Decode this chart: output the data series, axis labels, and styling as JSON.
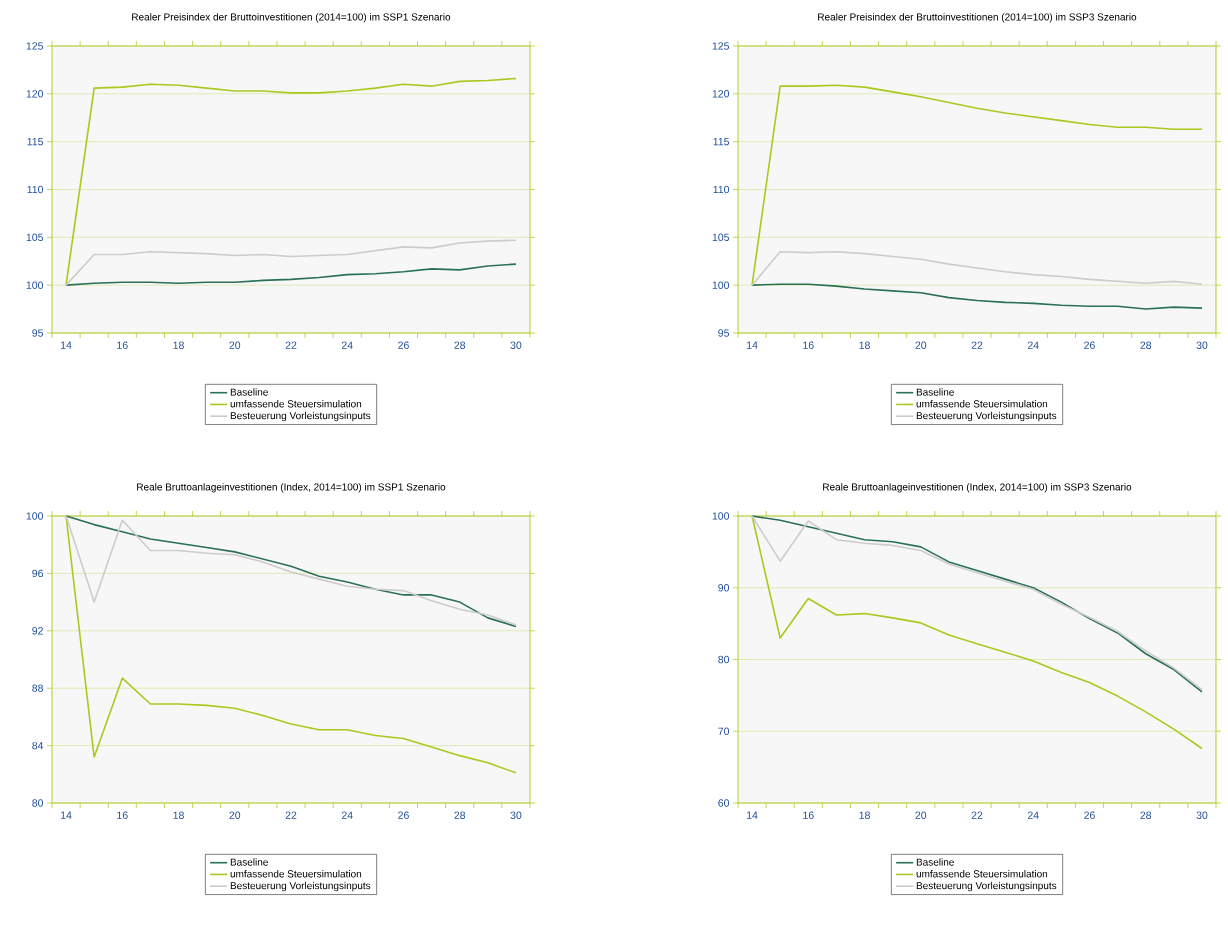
{
  "chart_data": [
    {
      "type": "line",
      "title": "Realer Preisindex der Bruttoinvestitionen (2014=100) im SSP1 Szenario",
      "categories": [
        "14",
        null,
        "16",
        null,
        "18",
        null,
        "20",
        null,
        "22",
        null,
        "24",
        null,
        "26",
        null,
        "28",
        null,
        "30"
      ],
      "ylim": [
        95,
        125
      ],
      "yticks": [
        95,
        100,
        105,
        110,
        115,
        120,
        125
      ],
      "grid": "y",
      "legend": "bottom",
      "series": [
        {
          "name": "Baseline",
          "color": "#2a7055",
          "values": [
            100,
            100.2,
            100.3,
            100.3,
            100.2,
            100.3,
            100.3,
            100.5,
            100.6,
            100.8,
            101.1,
            101.2,
            101.4,
            101.7,
            101.6,
            102.0,
            102.2
          ]
        },
        {
          "name": "umfassende Steuersimulation",
          "color": "#a8c91e",
          "values": [
            100,
            120.6,
            120.7,
            121.0,
            120.9,
            120.6,
            120.3,
            120.3,
            120.1,
            120.1,
            120.3,
            120.6,
            121.0,
            120.8,
            121.3,
            121.4,
            121.6
          ]
        },
        {
          "name": "Besteuerung Vorleistungsinputs",
          "color": "#cccccc",
          "values": [
            100,
            103.2,
            103.2,
            103.5,
            103.4,
            103.3,
            103.1,
            103.2,
            103.0,
            103.1,
            103.2,
            103.6,
            104.0,
            103.9,
            104.4,
            104.6,
            104.7
          ]
        }
      ]
    },
    {
      "type": "line",
      "title": "Realer Preisindex der Bruttoinvestitionen (2014=100) im SSP3 Szenario",
      "categories": [
        "14",
        null,
        "16",
        null,
        "18",
        null,
        "20",
        null,
        "22",
        null,
        "24",
        null,
        "26",
        null,
        "28",
        null,
        "30"
      ],
      "ylim": [
        95,
        125
      ],
      "yticks": [
        95,
        100,
        105,
        110,
        115,
        120,
        125
      ],
      "grid": "y",
      "legend": "bottom",
      "series": [
        {
          "name": "Baseline",
          "color": "#2a7055",
          "values": [
            100,
            100.1,
            100.1,
            99.9,
            99.6,
            99.4,
            99.2,
            98.7,
            98.4,
            98.2,
            98.1,
            97.9,
            97.8,
            97.8,
            97.5,
            97.7,
            97.6
          ]
        },
        {
          "name": "umfassende Steuersimulation",
          "color": "#a8c91e",
          "values": [
            100,
            120.8,
            120.8,
            120.9,
            120.7,
            120.2,
            119.7,
            119.1,
            118.5,
            118.0,
            117.6,
            117.2,
            116.8,
            116.5,
            116.5,
            116.3,
            116.3
          ]
        },
        {
          "name": "Besteuerung Vorleistungsinputs",
          "color": "#cccccc",
          "values": [
            100,
            103.5,
            103.4,
            103.5,
            103.3,
            103.0,
            102.7,
            102.2,
            101.8,
            101.4,
            101.1,
            100.9,
            100.6,
            100.4,
            100.2,
            100.4,
            100.1
          ]
        }
      ]
    },
    {
      "type": "line",
      "title": "Reale Bruttoanlageinvestitionen (Index, 2014=100) im SSP1 Szenario",
      "categories": [
        "14",
        null,
        "16",
        null,
        "18",
        null,
        "20",
        null,
        "22",
        null,
        "24",
        null,
        "26",
        null,
        "28",
        null,
        "30"
      ],
      "ylim": [
        80,
        100
      ],
      "yticks": [
        80,
        84,
        88,
        92,
        96,
        100
      ],
      "grid": "y",
      "legend": "bottom",
      "series": [
        {
          "name": "Baseline",
          "color": "#2a7055",
          "values": [
            100,
            99.4,
            98.9,
            98.4,
            98.1,
            97.8,
            97.5,
            97.0,
            96.5,
            95.8,
            95.4,
            94.9,
            94.5,
            94.5,
            94.0,
            92.9,
            92.3
          ]
        },
        {
          "name": "umfassende Steuersimulation",
          "color": "#a8c91e",
          "values": [
            100,
            83.2,
            88.7,
            86.9,
            86.9,
            86.8,
            86.6,
            86.1,
            85.5,
            85.1,
            85.1,
            84.7,
            84.5,
            83.9,
            83.3,
            82.8,
            82.1
          ]
        },
        {
          "name": "Besteuerung Vorleistungsinputs",
          "color": "#cccccc",
          "values": [
            100,
            94.0,
            99.7,
            97.6,
            97.6,
            97.4,
            97.3,
            96.8,
            96.1,
            95.6,
            95.1,
            94.9,
            94.8,
            94.1,
            93.5,
            93.1,
            92.4
          ]
        }
      ]
    },
    {
      "type": "line",
      "title": "Reale Bruttoanlageinvestitionen (Index, 2014=100) im SSP3 Szenario",
      "categories": [
        "14",
        null,
        "16",
        null,
        "18",
        null,
        "20",
        null,
        "22",
        null,
        "24",
        null,
        "26",
        null,
        "28",
        null,
        "30"
      ],
      "ylim": [
        60,
        100
      ],
      "yticks": [
        60,
        70,
        80,
        90,
        100
      ],
      "grid": "y",
      "legend": "bottom",
      "series": [
        {
          "name": "Baseline",
          "color": "#2a7055",
          "values": [
            100,
            99.4,
            98.5,
            97.6,
            96.7,
            96.4,
            95.7,
            93.6,
            92.4,
            91.2,
            90.0,
            88.0,
            85.7,
            83.7,
            80.8,
            78.6,
            75.5
          ]
        },
        {
          "name": "umfassende Steuersimulation",
          "color": "#a8c91e",
          "values": [
            100,
            83.0,
            88.5,
            86.2,
            86.4,
            85.8,
            85.1,
            83.4,
            82.2,
            81.0,
            79.8,
            78.2,
            76.8,
            74.9,
            72.7,
            70.3,
            67.6
          ]
        },
        {
          "name": "Besteuerung Vorleistungsinputs",
          "color": "#cccccc",
          "values": [
            100,
            93.7,
            99.3,
            96.7,
            96.2,
            95.9,
            95.2,
            93.3,
            92.1,
            90.9,
            89.8,
            87.7,
            85.9,
            83.9,
            81.2,
            78.8,
            75.8
          ]
        }
      ]
    }
  ]
}
